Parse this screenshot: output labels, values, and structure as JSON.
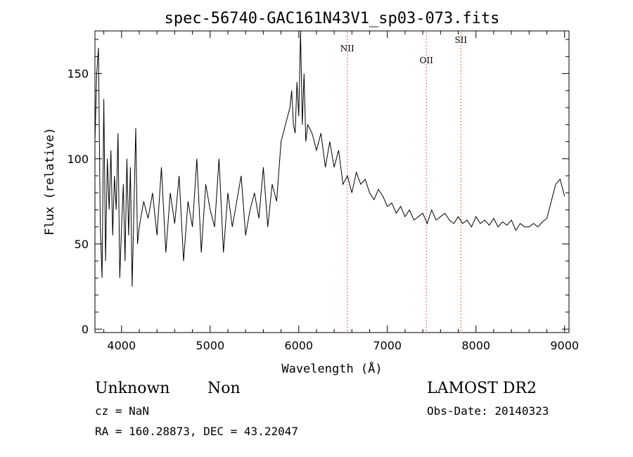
{
  "chart_data": {
    "type": "line",
    "title": "spec-56740-GAC161N43V1_sp03-073.fits",
    "xlabel": "Wavelength (Å)",
    "ylabel": "Flux (relative)",
    "xlim": [
      3700,
      9050
    ],
    "ylim": [
      -2,
      175
    ],
    "x_ticks": [
      4000,
      5000,
      6000,
      7000,
      8000,
      9000
    ],
    "y_ticks": [
      0,
      50,
      100,
      150
    ],
    "grid": false,
    "line_color": "#000000",
    "marker_color": "#cc3333",
    "series": [
      {
        "x": [
          3700,
          3720,
          3740,
          3760,
          3780,
          3800,
          3820,
          3840,
          3860,
          3880,
          3900,
          3920,
          3940,
          3960,
          3980,
          4000,
          4020,
          4040,
          4060,
          4080,
          4100,
          4120,
          4140,
          4160,
          4180,
          4200,
          4250,
          4300,
          4350,
          4400,
          4450,
          4500,
          4550,
          4600,
          4650,
          4700,
          4750,
          4800,
          4850,
          4900,
          4950,
          5000,
          5050,
          5100,
          5150,
          5200,
          5250,
          5300,
          5350,
          5400,
          5450,
          5500,
          5550,
          5600,
          5650,
          5700,
          5750,
          5800,
          5850,
          5900,
          5920,
          5940,
          5960,
          5980,
          6000,
          6020,
          6040,
          6060,
          6080,
          6100,
          6150,
          6200,
          6250,
          6300,
          6350,
          6400,
          6450,
          6500,
          6550,
          6600,
          6650,
          6700,
          6750,
          6800,
          6850,
          6900,
          6950,
          7000,
          7050,
          7100,
          7150,
          7200,
          7250,
          7300,
          7350,
          7400,
          7450,
          7500,
          7550,
          7600,
          7650,
          7700,
          7750,
          7800,
          7850,
          7900,
          7950,
          8000,
          8050,
          8100,
          8150,
          8200,
          8250,
          8300,
          8350,
          8400,
          8450,
          8500,
          8550,
          8600,
          8650,
          8700,
          8750,
          8800,
          8850,
          8900,
          8950,
          9000
        ],
        "values": [
          110,
          150,
          165,
          60,
          30,
          135,
          40,
          100,
          70,
          105,
          55,
          90,
          70,
          115,
          30,
          60,
          85,
          40,
          100,
          55,
          95,
          25,
          70,
          118,
          50,
          60,
          75,
          65,
          80,
          55,
          95,
          45,
          80,
          62,
          90,
          40,
          75,
          60,
          100,
          45,
          85,
          70,
          60,
          100,
          45,
          80,
          60,
          75,
          90,
          55,
          70,
          80,
          65,
          95,
          60,
          85,
          75,
          110,
          120,
          130,
          140,
          120,
          115,
          145,
          125,
          175,
          120,
          150,
          110,
          120,
          115,
          105,
          115,
          95,
          110,
          95,
          105,
          85,
          90,
          80,
          92,
          85,
          88,
          80,
          76,
          82,
          78,
          72,
          74,
          68,
          72,
          66,
          70,
          64,
          66,
          68,
          62,
          70,
          64,
          66,
          68,
          64,
          62,
          66,
          62,
          64,
          60,
          66,
          62,
          64,
          61,
          65,
          60,
          63,
          61,
          64,
          58,
          62,
          60,
          60,
          62,
          60,
          63,
          65,
          75,
          85,
          88,
          78
        ]
      }
    ],
    "annotations": [
      {
        "label": "NII",
        "x": 6548,
        "y": 163
      },
      {
        "label": "OII",
        "x": 7440,
        "y": 156
      },
      {
        "label": "SII",
        "x": 7830,
        "y": 168
      }
    ]
  },
  "info": {
    "class": "Unknown",
    "subclass": "Non",
    "cz": "cz = NaN",
    "radec": "RA = 160.28873, DEC =  43.22047",
    "survey": "LAMOST DR2",
    "obs_date": "Obs-Date: 20140323"
  }
}
